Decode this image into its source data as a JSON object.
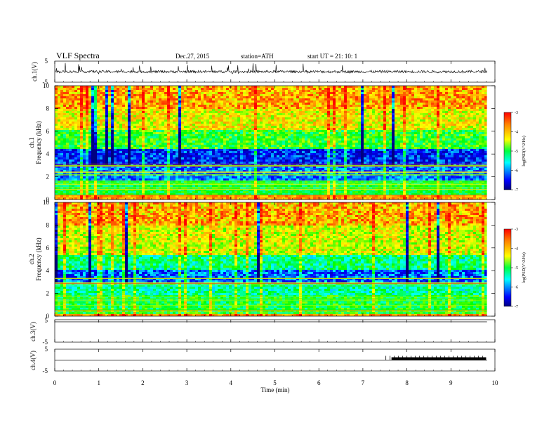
{
  "header": {
    "title": "VLF  Spectra",
    "date": "Dec.27, 2015",
    "station": "station=ATH",
    "start": "start  UT  =   21: 10: 1"
  },
  "chart_data": [
    {
      "panel": "ch1-waveform",
      "type": "line",
      "ylabel": "ch.1(V)",
      "yticks": [
        "5",
        "-5"
      ],
      "ylim": [
        -5,
        5
      ],
      "xlim": [
        0,
        10
      ],
      "baseline": 0
    },
    {
      "panel": "ch1-spectrogram",
      "type": "heatmap",
      "ylabel": "ch.1\nFrequency  (kHz)",
      "ylabel_channel": "ch.1",
      "ylabel_freq": "Frequency  (kHz)",
      "yticks": [
        "0",
        "2",
        "4",
        "6",
        "8",
        "10"
      ],
      "ylim": [
        0,
        10
      ],
      "xlim": [
        0,
        10
      ],
      "colorbar": {
        "label": "log(PSD(V^2/Hz)",
        "ticks": [
          "-3",
          "-4",
          "-5",
          "-6",
          "-7"
        ],
        "range": [
          -7,
          -3
        ]
      }
    },
    {
      "panel": "ch2-spectrogram",
      "type": "heatmap",
      "ylabel_channel": "ch.2",
      "ylabel_freq": "Frequency  (kHz)",
      "yticks": [
        "0",
        "2",
        "4",
        "6",
        "8",
        "10"
      ],
      "ylim": [
        0,
        10
      ],
      "xlim": [
        0,
        10
      ],
      "colorbar": {
        "label": "log(PSD(V^2/Hz)",
        "ticks": [
          "-3",
          "-4",
          "-5",
          "-6",
          "-7"
        ],
        "range": [
          -7,
          -3
        ]
      }
    },
    {
      "panel": "ch3-waveform",
      "type": "line",
      "ylabel": "ch.3(V)",
      "yticks": [
        "5",
        "-5"
      ],
      "ylim": [
        -5,
        5
      ],
      "xlim": [
        0,
        10
      ],
      "baseline": 5
    },
    {
      "panel": "ch4-waveform",
      "type": "line",
      "ylabel": "ch.4(V)",
      "yticks": [
        "5",
        "-5"
      ],
      "ylim": [
        -5,
        5
      ],
      "xlim": [
        0,
        10
      ],
      "baseline": 0,
      "pulse_interval_min": [
        7.65,
        9.8
      ]
    }
  ],
  "xaxis": {
    "label": "Time  (min)",
    "ticks": [
      "0",
      "1",
      "2",
      "3",
      "4",
      "5",
      "6",
      "7",
      "8",
      "9",
      "10"
    ],
    "range": [
      0,
      10
    ],
    "data_end": 9.82
  },
  "colors": {
    "jet": [
      "#000080",
      "#0000ff",
      "#00ffff",
      "#00ff00",
      "#ffff00",
      "#ff8000",
      "#ff0000"
    ],
    "line": "#000000"
  }
}
